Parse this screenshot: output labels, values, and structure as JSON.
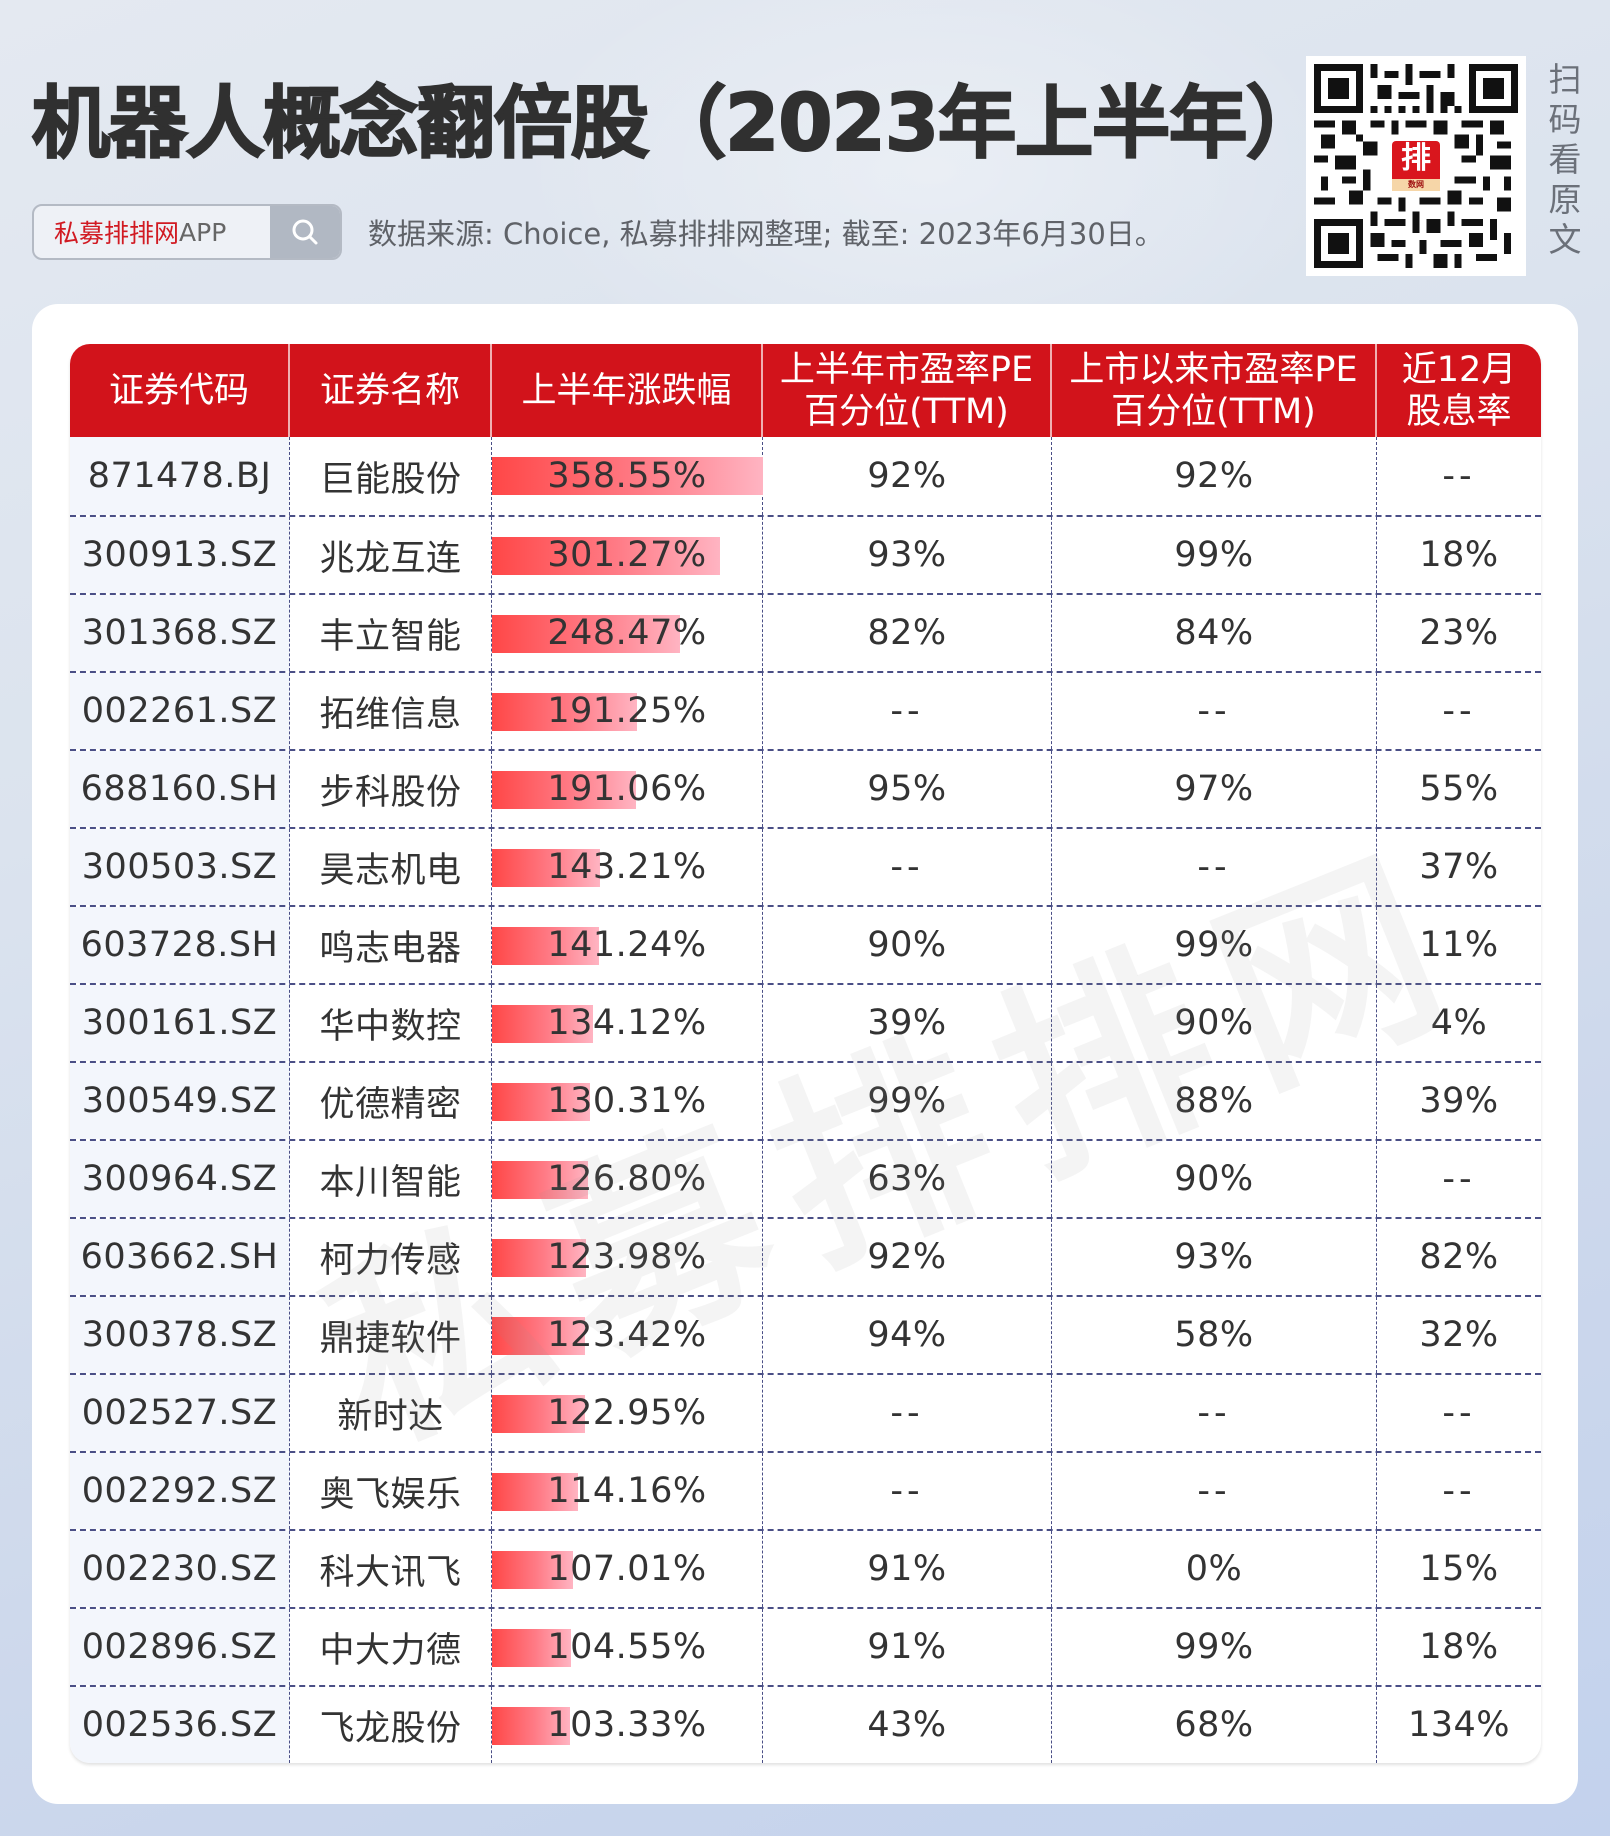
{
  "header": {
    "title": "机器人概念翻倍股（2023年上半年）",
    "brand_search": {
      "brand_cn": "私募排排网",
      "brand_en": "APP",
      "icon": "search-icon"
    },
    "source_note": "数据来源: Choice, 私募排排网整理; 截至: 2023年6月30日。",
    "qr": {
      "logo_text": "排",
      "logo_sub": "数网",
      "caption_chars": [
        "扫",
        "码",
        "看",
        "原",
        "文"
      ]
    }
  },
  "watermark": "私募排排网",
  "table": {
    "columns": [
      {
        "line1": "证券代码",
        "line2": ""
      },
      {
        "line1": "证券名称",
        "line2": ""
      },
      {
        "line1": "上半年涨跌幅",
        "line2": ""
      },
      {
        "line1": "上半年市盈率PE",
        "line2": "百分位(TTM)"
      },
      {
        "line1": "上市以来市盈率PE",
        "line2": "百分位(TTM)"
      },
      {
        "line1": "近12月",
        "line2": "股息率"
      }
    ],
    "rows": [
      {
        "code": "871478.BJ",
        "name": "巨能股份",
        "change": "358.55%",
        "change_value": 358.55,
        "pe_h1": "92%",
        "pe_since": "92%",
        "dividend": "--"
      },
      {
        "code": "300913.SZ",
        "name": "兆龙互连",
        "change": "301.27%",
        "change_value": 301.27,
        "pe_h1": "93%",
        "pe_since": "99%",
        "dividend": "18%"
      },
      {
        "code": "301368.SZ",
        "name": "丰立智能",
        "change": "248.47%",
        "change_value": 248.47,
        "pe_h1": "82%",
        "pe_since": "84%",
        "dividend": "23%"
      },
      {
        "code": "002261.SZ",
        "name": "拓维信息",
        "change": "191.25%",
        "change_value": 191.25,
        "pe_h1": "--",
        "pe_since": "--",
        "dividend": "--"
      },
      {
        "code": "688160.SH",
        "name": "步科股份",
        "change": "191.06%",
        "change_value": 191.06,
        "pe_h1": "95%",
        "pe_since": "97%",
        "dividend": "55%"
      },
      {
        "code": "300503.SZ",
        "name": "昊志机电",
        "change": "143.21%",
        "change_value": 143.21,
        "pe_h1": "--",
        "pe_since": "--",
        "dividend": "37%"
      },
      {
        "code": "603728.SH",
        "name": "鸣志电器",
        "change": "141.24%",
        "change_value": 141.24,
        "pe_h1": "90%",
        "pe_since": "99%",
        "dividend": "11%"
      },
      {
        "code": "300161.SZ",
        "name": "华中数控",
        "change": "134.12%",
        "change_value": 134.12,
        "pe_h1": "39%",
        "pe_since": "90%",
        "dividend": "4%"
      },
      {
        "code": "300549.SZ",
        "name": "优德精密",
        "change": "130.31%",
        "change_value": 130.31,
        "pe_h1": "99%",
        "pe_since": "88%",
        "dividend": "39%"
      },
      {
        "code": "300964.SZ",
        "name": "本川智能",
        "change": "126.80%",
        "change_value": 126.8,
        "pe_h1": "63%",
        "pe_since": "90%",
        "dividend": "--"
      },
      {
        "code": "603662.SH",
        "name": "柯力传感",
        "change": "123.98%",
        "change_value": 123.98,
        "pe_h1": "92%",
        "pe_since": "93%",
        "dividend": "82%"
      },
      {
        "code": "300378.SZ",
        "name": "鼎捷软件",
        "change": "123.42%",
        "change_value": 123.42,
        "pe_h1": "94%",
        "pe_since": "58%",
        "dividend": "32%"
      },
      {
        "code": "002527.SZ",
        "name": "新时达",
        "change": "122.95%",
        "change_value": 122.95,
        "pe_h1": "--",
        "pe_since": "--",
        "dividend": "--"
      },
      {
        "code": "002292.SZ",
        "name": "奥飞娱乐",
        "change": "114.16%",
        "change_value": 114.16,
        "pe_h1": "--",
        "pe_since": "--",
        "dividend": "--"
      },
      {
        "code": "002230.SZ",
        "name": "科大讯飞",
        "change": "107.01%",
        "change_value": 107.01,
        "pe_h1": "91%",
        "pe_since": "0%",
        "dividend": "15%"
      },
      {
        "code": "002896.SZ",
        "name": "中大力德",
        "change": "104.55%",
        "change_value": 104.55,
        "pe_h1": "91%",
        "pe_since": "99%",
        "dividend": "18%"
      },
      {
        "code": "002536.SZ",
        "name": "飞龙股份",
        "change": "103.33%",
        "change_value": 103.33,
        "pe_h1": "43%",
        "pe_since": "68%",
        "dividend": "134%"
      }
    ],
    "bar_max": 358.55
  },
  "colors": {
    "header_red": "#d2131b",
    "bar_start": "#ff4747",
    "bar_end": "#ffb4c2",
    "grid_dash": "#4a4f86",
    "code_col_bg": "#f3f6fc",
    "brand_red": "#d11a22"
  }
}
